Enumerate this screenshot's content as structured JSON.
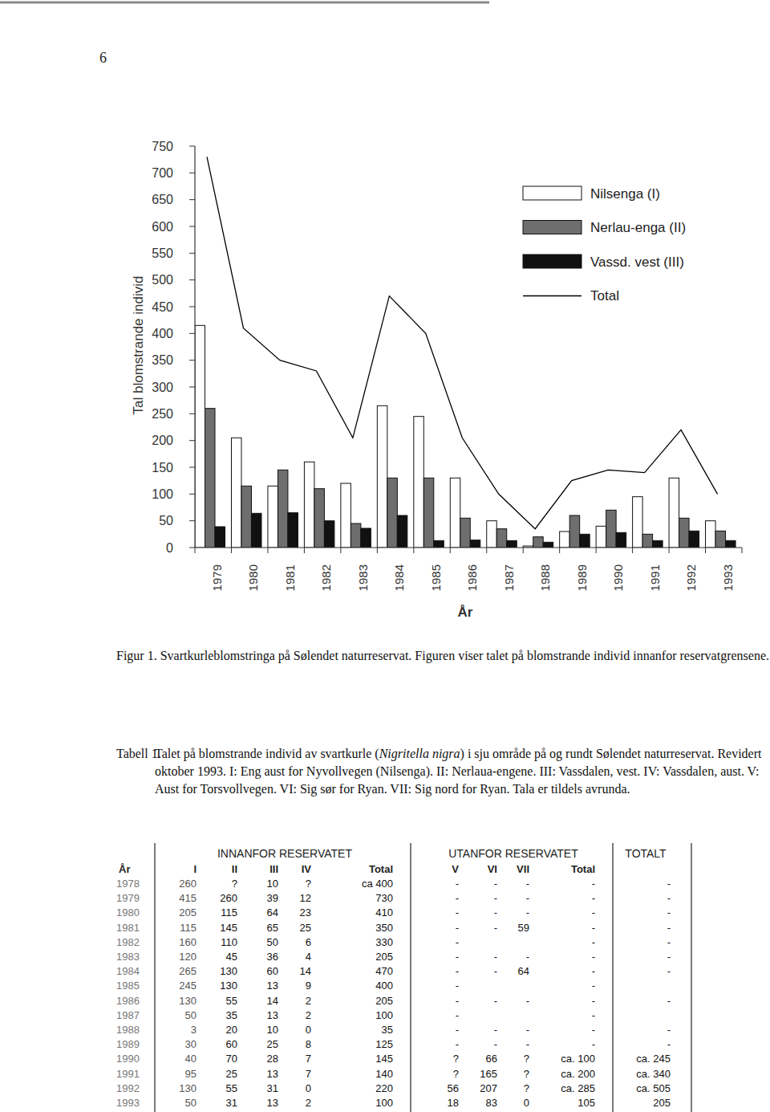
{
  "page_number": "6",
  "chart_data": {
    "type": "bar",
    "xlabel": "År",
    "ylabel": "Tal blomstrande individ",
    "categories": [
      "1979",
      "1980",
      "1981",
      "1982",
      "1983",
      "1984",
      "1985",
      "1986",
      "1987",
      "1988",
      "1989",
      "1990",
      "1991",
      "1992",
      "1993"
    ],
    "series": [
      {
        "name": "Nilsenga (I)",
        "type": "bar",
        "color": "#ffffff",
        "values": [
          415,
          205,
          115,
          160,
          120,
          265,
          245,
          130,
          50,
          3,
          30,
          40,
          95,
          130,
          50
        ]
      },
      {
        "name": "Nerlau-enga (II)",
        "type": "bar",
        "color": "#6e6e6e",
        "values": [
          260,
          115,
          145,
          110,
          45,
          130,
          130,
          55,
          35,
          20,
          60,
          70,
          25,
          55,
          31
        ]
      },
      {
        "name": "Vassd. vest (III)",
        "type": "bar",
        "color": "#111111",
        "values": [
          39,
          64,
          65,
          50,
          36,
          60,
          13,
          14,
          13,
          10,
          25,
          28,
          13,
          31,
          13
        ]
      },
      {
        "name": "Total",
        "type": "line",
        "color": "#000000",
        "values": [
          730,
          410,
          350,
          330,
          205,
          470,
          400,
          205,
          100,
          35,
          125,
          145,
          140,
          220,
          100
        ]
      }
    ],
    "ylim": [
      0,
      750
    ],
    "yticks": [
      0,
      50,
      100,
      150,
      200,
      250,
      300,
      350,
      400,
      450,
      500,
      550,
      600,
      650,
      700,
      750
    ],
    "grid": false,
    "legend": "top-right"
  },
  "figure_caption": {
    "label": "Figur 1.",
    "text": "Svartkurleblomstringa på Sølendet naturreservat. Figuren viser talet på blomstrande individ innanfor reservatgrensene."
  },
  "table_caption": {
    "label": "Tabell 1.",
    "text_before": "Talet på blomstrande individ av svartkurle (",
    "species": "Nigritella nigra",
    "text_after": ") i sju område på og rundt Sølendet naturreservat. Revidert oktober 1993. I: Eng aust for Nyvollvegen (Nilsenga). II: Nerlaua-engene. III: Vassdalen, vest. IV: Vassdalen, aust. V: Aust for Torsvollvegen. VI: Sig sør for Ryan. VII: Sig nord for Ryan. Tala er tildels avrunda."
  },
  "table": {
    "group_headers": [
      "INNANFOR RESERVATET",
      "UTANFOR RESERVATET",
      "TOTALT"
    ],
    "columns": [
      "År",
      "I",
      "II",
      "III",
      "IV",
      "Total",
      "V",
      "VI",
      "VII",
      "Total"
    ],
    "rows": [
      [
        "1978",
        "260",
        "?",
        "10",
        "?",
        "ca 400",
        "-",
        "-",
        "-",
        "-",
        "-"
      ],
      [
        "1979",
        "415",
        "260",
        "39",
        "12",
        "730",
        "-",
        "-",
        "-",
        "-",
        "-"
      ],
      [
        "1980",
        "205",
        "115",
        "64",
        "23",
        "410",
        "-",
        "-",
        "-",
        "-",
        "-"
      ],
      [
        "1981",
        "115",
        "145",
        "65",
        "25",
        "350",
        "-",
        "-",
        "59",
        "-",
        "-"
      ],
      [
        "1982",
        "160",
        "110",
        "50",
        "6",
        "330",
        "-",
        null,
        null,
        "-",
        "-"
      ],
      [
        "1983",
        "120",
        "45",
        "36",
        "4",
        "205",
        "-",
        "-",
        "-",
        "-",
        "-"
      ],
      [
        "1984",
        "265",
        "130",
        "60",
        "14",
        "470",
        "-",
        "-",
        "64",
        "-",
        "-"
      ],
      [
        "1985",
        "245",
        "130",
        "13",
        "9",
        "400",
        "-",
        null,
        null,
        "-",
        null
      ],
      [
        "1986",
        "130",
        "55",
        "14",
        "2",
        "205",
        "-",
        "-",
        "-",
        "-",
        "-"
      ],
      [
        "1987",
        "50",
        "35",
        "13",
        "2",
        "100",
        "-",
        null,
        null,
        "-",
        null
      ],
      [
        "1988",
        "3",
        "20",
        "10",
        "0",
        "35",
        "-",
        "-",
        "-",
        "-",
        "-"
      ],
      [
        "1989",
        "30",
        "60",
        "25",
        "8",
        "125",
        "-",
        "-",
        "-",
        "-",
        "-"
      ],
      [
        "1990",
        "40",
        "70",
        "28",
        "7",
        "145",
        "?",
        "66",
        "?",
        "ca. 100",
        "ca. 245"
      ],
      [
        "1991",
        "95",
        "25",
        "13",
        "7",
        "140",
        "?",
        "165",
        "?",
        "ca. 200",
        "ca. 340"
      ],
      [
        "1992",
        "130",
        "55",
        "31",
        "0",
        "220",
        "56",
        "207",
        "?",
        "ca. 285",
        "ca. 505"
      ],
      [
        "1993",
        "50",
        "31",
        "13",
        "2",
        "100",
        "18",
        "83",
        "0",
        "105",
        "205"
      ]
    ]
  }
}
